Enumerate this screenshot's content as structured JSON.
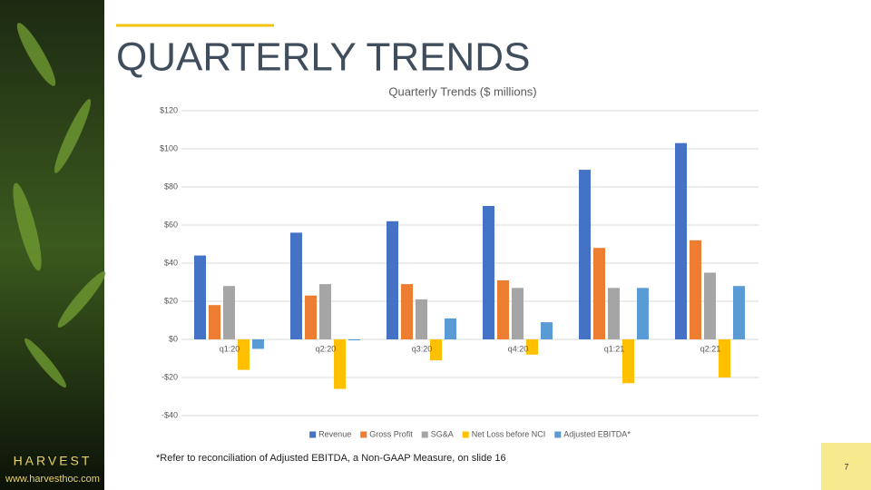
{
  "slide": {
    "title": "QUARTERLY TRENDS",
    "brand": "HARVEST",
    "url": "www.harvesthoc.com",
    "footnote": "*Refer to reconciliation of Adjusted EBITDA, a Non-GAAP Measure, on slide 16",
    "page": "7"
  },
  "chart_data": {
    "type": "bar",
    "title": "Quarterly Trends ($ millions)",
    "categories": [
      "q1:20",
      "q2:20",
      "q3:20",
      "q4:20",
      "q1:21",
      "q2:21"
    ],
    "series": [
      {
        "name": "Revenue",
        "color": "#4472c4",
        "values": [
          44,
          56,
          62,
          70,
          89,
          103
        ]
      },
      {
        "name": "Gross Profit",
        "color": "#ed7d31",
        "values": [
          18,
          23,
          29,
          31,
          48,
          52
        ]
      },
      {
        "name": "SG&A",
        "color": "#a5a5a5",
        "values": [
          28,
          29,
          21,
          27,
          27,
          35
        ]
      },
      {
        "name": "Net Loss before NCI",
        "color": "#ffc000",
        "values": [
          -16,
          -26,
          -11,
          -8,
          -23,
          -20
        ]
      },
      {
        "name": "Adjusted EBITDA*",
        "color": "#5b9bd5",
        "values": [
          -5,
          -0.5,
          11,
          9,
          27,
          28
        ]
      }
    ],
    "ylim": [
      -40,
      120
    ],
    "yticks": [
      {
        "value": -40,
        "label": "-$40"
      },
      {
        "value": -20,
        "label": "-$20"
      },
      {
        "value": 0,
        "label": "$0"
      },
      {
        "value": 20,
        "label": "$20"
      },
      {
        "value": 40,
        "label": "$40"
      },
      {
        "value": 60,
        "label": "$60"
      },
      {
        "value": 80,
        "label": "$80"
      },
      {
        "value": 100,
        "label": "$100"
      },
      {
        "value": 120,
        "label": "$120"
      }
    ],
    "grid": true,
    "legend": "bottom"
  }
}
